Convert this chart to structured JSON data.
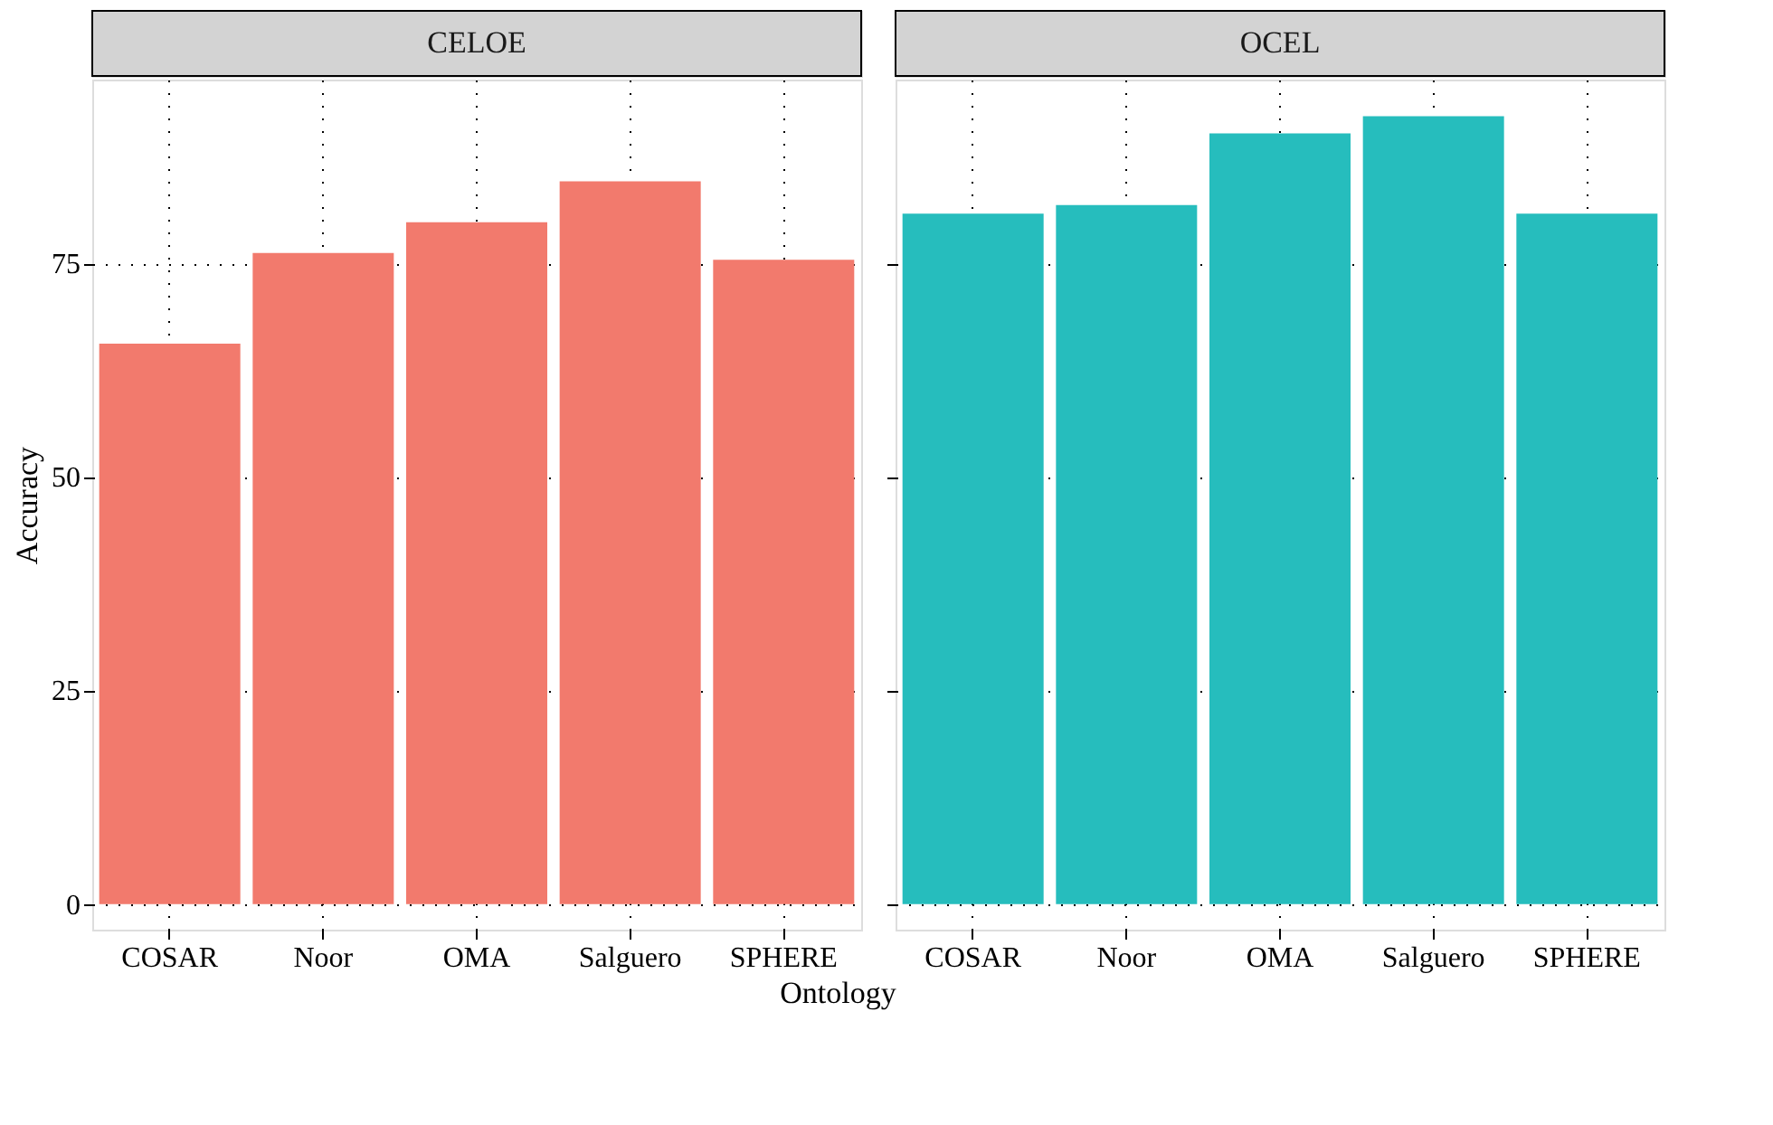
{
  "chart_data": [
    {
      "type": "bar",
      "title": "CELOE",
      "categories": [
        "COSAR",
        "Noor",
        "OMA",
        "Salguero",
        "SPHERE"
      ],
      "values": [
        65.6,
        76.2,
        79.8,
        84.6,
        75.4
      ],
      "color": "#f27a6d",
      "ylim": [
        -3,
        96.5
      ],
      "yticks": [
        0,
        25,
        50,
        75
      ],
      "ylabel": "Accuracy",
      "xlabel": "Ontology",
      "grid": true
    },
    {
      "type": "bar",
      "title": "OCEL",
      "categories": [
        "COSAR",
        "Noor",
        "OMA",
        "Salguero",
        "SPHERE"
      ],
      "values": [
        80.8,
        81.8,
        90.2,
        92.2,
        80.8
      ],
      "color": "#26bdbd",
      "ylim": [
        -3,
        96.5
      ],
      "yticks": [
        0,
        25,
        50,
        75
      ],
      "grid": true,
      "tick_labels": "x"
    }
  ]
}
